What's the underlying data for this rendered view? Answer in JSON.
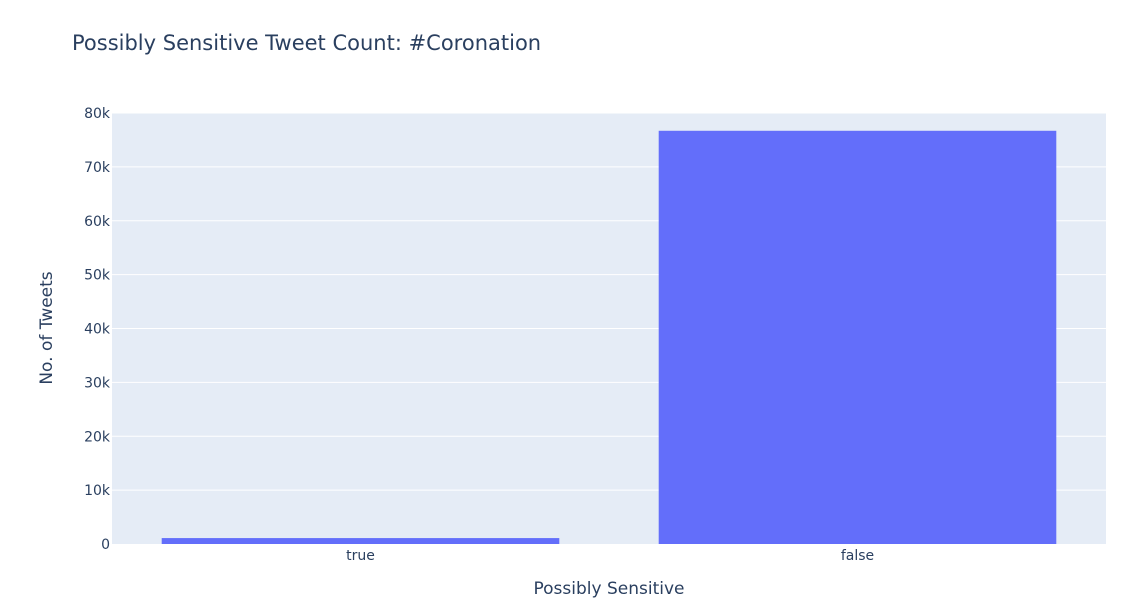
{
  "chart_data": {
    "type": "bar",
    "title": "Possibly Sensitive Tweet Count: #Coronation",
    "xlabel": "Possibly Sensitive",
    "ylabel": "No. of Tweets",
    "categories": [
      "true",
      "false"
    ],
    "values": [
      1100,
      76700
    ],
    "ylim": [
      0,
      80000
    ],
    "yticks": [
      0,
      10000,
      20000,
      30000,
      40000,
      50000,
      60000,
      70000,
      80000
    ],
    "ytick_labels": [
      "0",
      "10k",
      "20k",
      "30k",
      "40k",
      "50k",
      "60k",
      "70k",
      "80k"
    ],
    "grid": true,
    "legend": "none",
    "colors": {
      "bar": "#636efa",
      "plot_background": "#e5ecf6",
      "gridline": "#ffffff",
      "text": "#2a3f5f"
    }
  }
}
